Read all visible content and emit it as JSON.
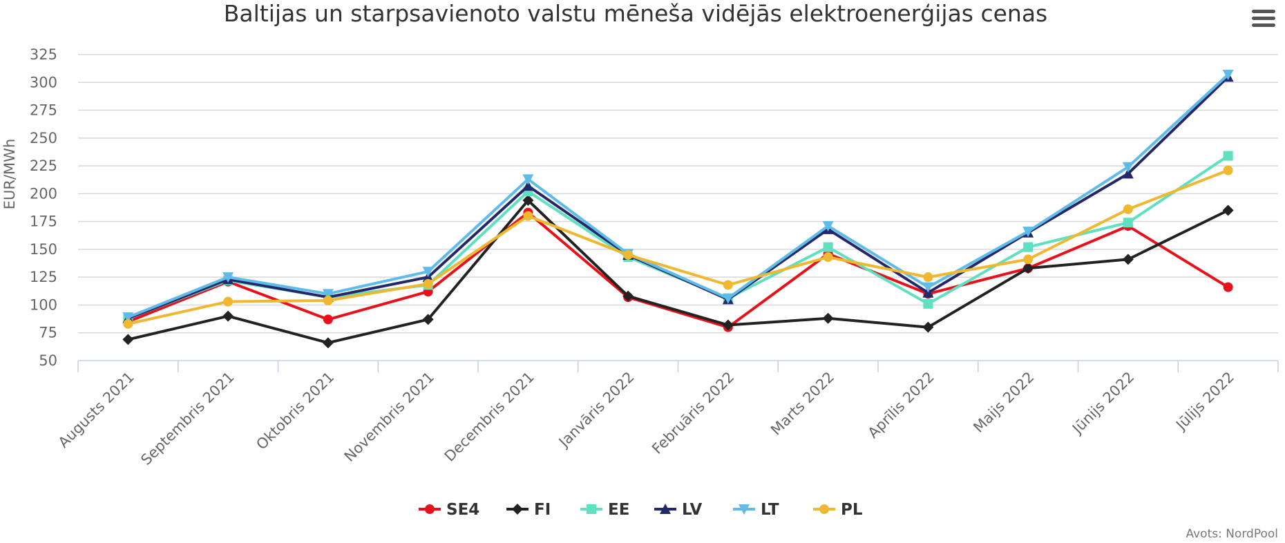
{
  "chart_data": {
    "type": "line",
    "title": "Baltijas un starpsavienoto valstu mēneša vidējās elektroenerģijas cenas",
    "ylabel": "EUR/MWh",
    "xlabel": "",
    "ylim": [
      50,
      325
    ],
    "ytick_step": 25,
    "grid": true,
    "legend_position": "bottom-center",
    "categories": [
      "Augusts 2021",
      "Septembris 2021",
      "Oktobris 2021",
      "Novembris 2021",
      "Decembris 2021",
      "Janvāris 2022",
      "Februāris 2022",
      "Marts 2022",
      "Aprīlis 2022",
      "Maijs 2022",
      "Jūnijs 2022",
      "Jūlijs 2022"
    ],
    "series": [
      {
        "name": "SE4",
        "color": "#e8111b",
        "marker": "circle",
        "values": [
          85,
          121,
          87,
          112,
          183,
          107,
          80,
          146,
          110,
          133,
          171,
          116
        ]
      },
      {
        "name": "FI",
        "color": "#222222",
        "marker": "diamond",
        "values": [
          69,
          90,
          66,
          87,
          194,
          108,
          82,
          88,
          80,
          133,
          141,
          185
        ]
      },
      {
        "name": "EE",
        "color": "#5fe0c0",
        "marker": "square",
        "values": [
          88,
          122,
          107,
          118,
          202,
          143,
          106,
          152,
          101,
          152,
          174,
          234
        ]
      },
      {
        "name": "LV",
        "color": "#24286b",
        "marker": "triangle",
        "values": [
          88,
          123,
          107,
          125,
          207,
          145,
          105,
          168,
          111,
          165,
          218,
          305
        ]
      },
      {
        "name": "LT",
        "color": "#5fbbe8",
        "marker": "triangle-down",
        "values": [
          89,
          125,
          110,
          130,
          213,
          146,
          106,
          171,
          116,
          166,
          224,
          307
        ]
      },
      {
        "name": "PL",
        "color": "#f0b830",
        "marker": "circle",
        "values": [
          83,
          103,
          104,
          119,
          180,
          145,
          118,
          143,
          125,
          141,
          186,
          221
        ]
      }
    ],
    "credits": "Avots: NordPool"
  },
  "menu": {
    "icon": "hamburger-menu-icon"
  }
}
